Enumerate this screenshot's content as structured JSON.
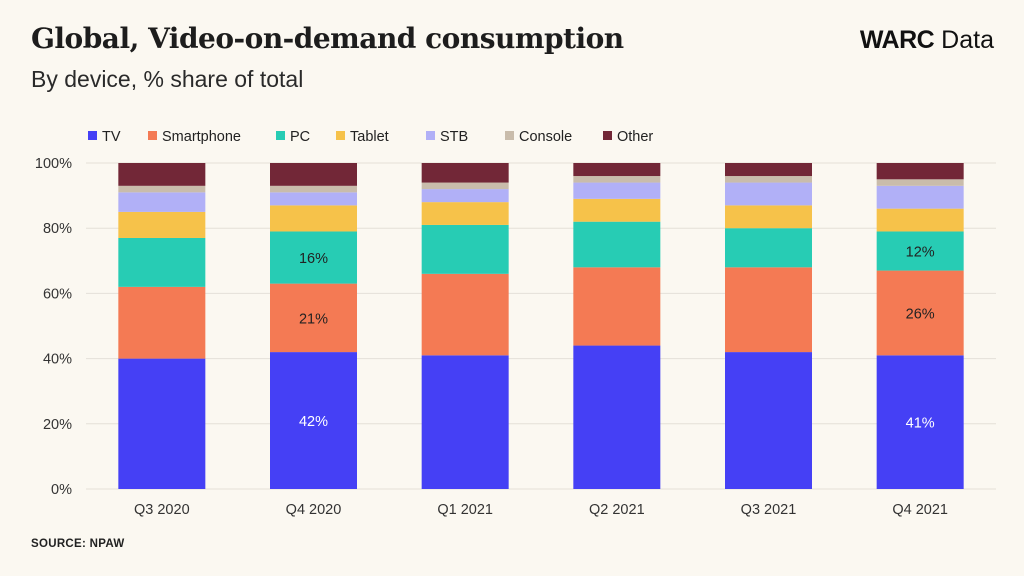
{
  "header": {
    "title": "Global, Video-on-demand consumption",
    "subtitle": "By device, % share of total",
    "brand_strong": "WARC",
    "brand_rest": " Data"
  },
  "footer": {
    "source": "SOURCE: NPAW"
  },
  "chart_data": {
    "type": "bar",
    "stacked": true,
    "categories": [
      "Q3 2020",
      "Q4 2020",
      "Q1 2021",
      "Q2 2021",
      "Q3 2021",
      "Q4 2021"
    ],
    "series": [
      {
        "name": "TV",
        "color": "#4540f5",
        "values": [
          40,
          42,
          41,
          44,
          42,
          41
        ],
        "text_color": "#ffffff"
      },
      {
        "name": "Smartphone",
        "color": "#f47a54",
        "values": [
          22,
          21,
          25,
          24,
          26,
          26
        ],
        "text_color": "#222222"
      },
      {
        "name": "PC",
        "color": "#27ccb4",
        "values": [
          15,
          16,
          15,
          14,
          12,
          12
        ],
        "text_color": "#222222"
      },
      {
        "name": "Tablet",
        "color": "#f6c24a",
        "values": [
          8,
          8,
          7,
          7,
          7,
          7
        ],
        "text_color": "#222222"
      },
      {
        "name": "STB",
        "color": "#b1b0f7",
        "values": [
          6,
          4,
          4,
          5,
          7,
          7
        ],
        "text_color": "#222222"
      },
      {
        "name": "Console",
        "color": "#c9bcab",
        "values": [
          2,
          2,
          2,
          2,
          2,
          2
        ],
        "text_color": "#222222"
      },
      {
        "name": "Other",
        "color": "#722737",
        "values": [
          7,
          7,
          6,
          4,
          4,
          5
        ],
        "text_color": "#ffffff"
      }
    ],
    "data_labels": [
      {
        "category": "Q4 2020",
        "series": "TV",
        "text": "42%"
      },
      {
        "category": "Q4 2020",
        "series": "Smartphone",
        "text": "21%"
      },
      {
        "category": "Q4 2020",
        "series": "PC",
        "text": "16%"
      },
      {
        "category": "Q4 2021",
        "series": "TV",
        "text": "41%"
      },
      {
        "category": "Q4 2021",
        "series": "Smartphone",
        "text": "26%"
      },
      {
        "category": "Q4 2021",
        "series": "PC",
        "text": "12%"
      }
    ],
    "y_ticks": [
      "0%",
      "20%",
      "40%",
      "60%",
      "80%",
      "100%"
    ],
    "ylim": [
      0,
      100
    ],
    "grid": true,
    "legend_position": "top-left"
  }
}
